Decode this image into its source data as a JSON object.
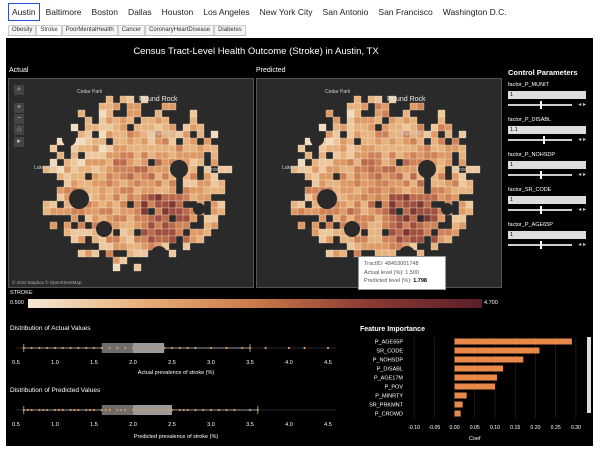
{
  "cities": [
    "Austin",
    "Baltimore",
    "Boston",
    "Dallas",
    "Houston",
    "Los Angeles",
    "New York City",
    "San Antonio",
    "San Francisco",
    "Washington D.C."
  ],
  "active_city": "Austin",
  "outcomes": [
    "Obesity",
    "Stroke",
    "PoorMentalHealth",
    "Cancer",
    "CoronaryHeartDisease",
    "Diabetes"
  ],
  "active_outcome": "Stroke",
  "title": "Census Tract-Level Health Outcome (Stroke) in Austin, TX",
  "actual_label": "Actual",
  "predicted_label": "Predicted",
  "map_places": [
    "Cedar Park",
    "Round Rock",
    "Pflugerville",
    "Lakeway",
    "Manor"
  ],
  "map_attribution": "© 2022 Mapbox © OpenStreetMap",
  "tooltip": {
    "tract_label": "TractID:",
    "tract_value": "48453001748",
    "actual_label": "Actual level (%):",
    "actual_value": "1.500",
    "predicted_label": "Predicted level (%):",
    "predicted_value": "1.798"
  },
  "control_title": "Control Parameters",
  "factors": [
    {
      "name": "factor_P_MUNIT",
      "value": "1",
      "level": 0.5
    },
    {
      "name": "factor_P_DISABL",
      "value": "1.1",
      "level": 0.55
    },
    {
      "name": "factor_P_NOHSDP",
      "value": "1",
      "level": 0.5
    },
    {
      "name": "factor_SR_CODE",
      "value": "1",
      "level": 0.5
    },
    {
      "name": "factor_P_AGE65P",
      "value": "1",
      "level": 0.5
    }
  ],
  "legend": {
    "label": "STROKE",
    "min": "0.500",
    "max": "4.700"
  },
  "dist_actual": {
    "title": "Distribution of Actual Values",
    "xlabel": "Actual prevalence of stroke (%)",
    "ticks": [
      "0.5",
      "1.0",
      "1.5",
      "2.0",
      "2.5",
      "3.0",
      "3.5",
      "4.0",
      "4.5"
    ],
    "box": {
      "min": 0.6,
      "q1": 1.6,
      "median": 2.0,
      "q3": 2.4,
      "max": 3.5
    },
    "points": [
      0.6,
      0.7,
      0.8,
      0.9,
      1.0,
      1.1,
      1.2,
      1.3,
      1.4,
      1.5,
      1.6,
      1.7,
      1.8,
      1.9,
      2.0,
      2.1,
      2.2,
      2.3,
      2.4,
      2.5,
      2.6,
      2.7,
      2.8,
      3.0,
      3.2,
      3.4,
      3.5,
      3.7,
      4.0,
      4.2,
      4.5
    ]
  },
  "dist_predicted": {
    "title": "Distribution of Predicted Values",
    "xlabel": "Predicted prevalence of stroke (%)",
    "ticks": [
      "0.5",
      "1.0",
      "1.5",
      "2.0",
      "2.5",
      "3.0",
      "3.5",
      "4.0",
      "4.5"
    ],
    "box": {
      "min": 0.6,
      "q1": 1.6,
      "median": 2.0,
      "q3": 2.5,
      "max": 3.6
    },
    "points": [
      0.6,
      0.65,
      0.7,
      0.8,
      0.85,
      0.9,
      1.0,
      1.05,
      1.1,
      1.2,
      1.25,
      1.3,
      1.4,
      1.45,
      1.5,
      1.6,
      1.65,
      1.7,
      1.8,
      1.85,
      1.9,
      2.0,
      2.05,
      2.1,
      2.2,
      2.25,
      2.3,
      2.4,
      2.45,
      2.5,
      2.6,
      2.65,
      2.7,
      2.8,
      2.9,
      3.0,
      3.1,
      3.2,
      3.3,
      3.5,
      3.6
    ]
  },
  "chart_data": {
    "type": "bar",
    "title": "Feature Importance",
    "xlabel": "Coef",
    "categories": [
      "P_AGE65P",
      "SR_CODE",
      "P_NOHSDP",
      "P_DISABL",
      "P_AGE17M",
      "P_POV",
      "P_MINRTY",
      "SR_PRKMNT",
      "P_CROWD"
    ],
    "values": [
      0.29,
      0.21,
      0.17,
      0.12,
      0.105,
      0.1,
      0.03,
      0.02,
      0.015
    ],
    "xlim": [
      -0.12,
      0.32
    ],
    "ticks": [
      "-0.10",
      "-0.05",
      "0.00",
      "0.05",
      "0.10",
      "0.15",
      "0.20",
      "0.25",
      "0.30"
    ],
    "tick_values": [
      -0.1,
      -0.05,
      0.0,
      0.05,
      0.1,
      0.15,
      0.2,
      0.25,
      0.3
    ],
    "bar_color": "#e8894a"
  },
  "colors": {
    "bar": "#e8894a",
    "box": "#7a7a7a"
  }
}
